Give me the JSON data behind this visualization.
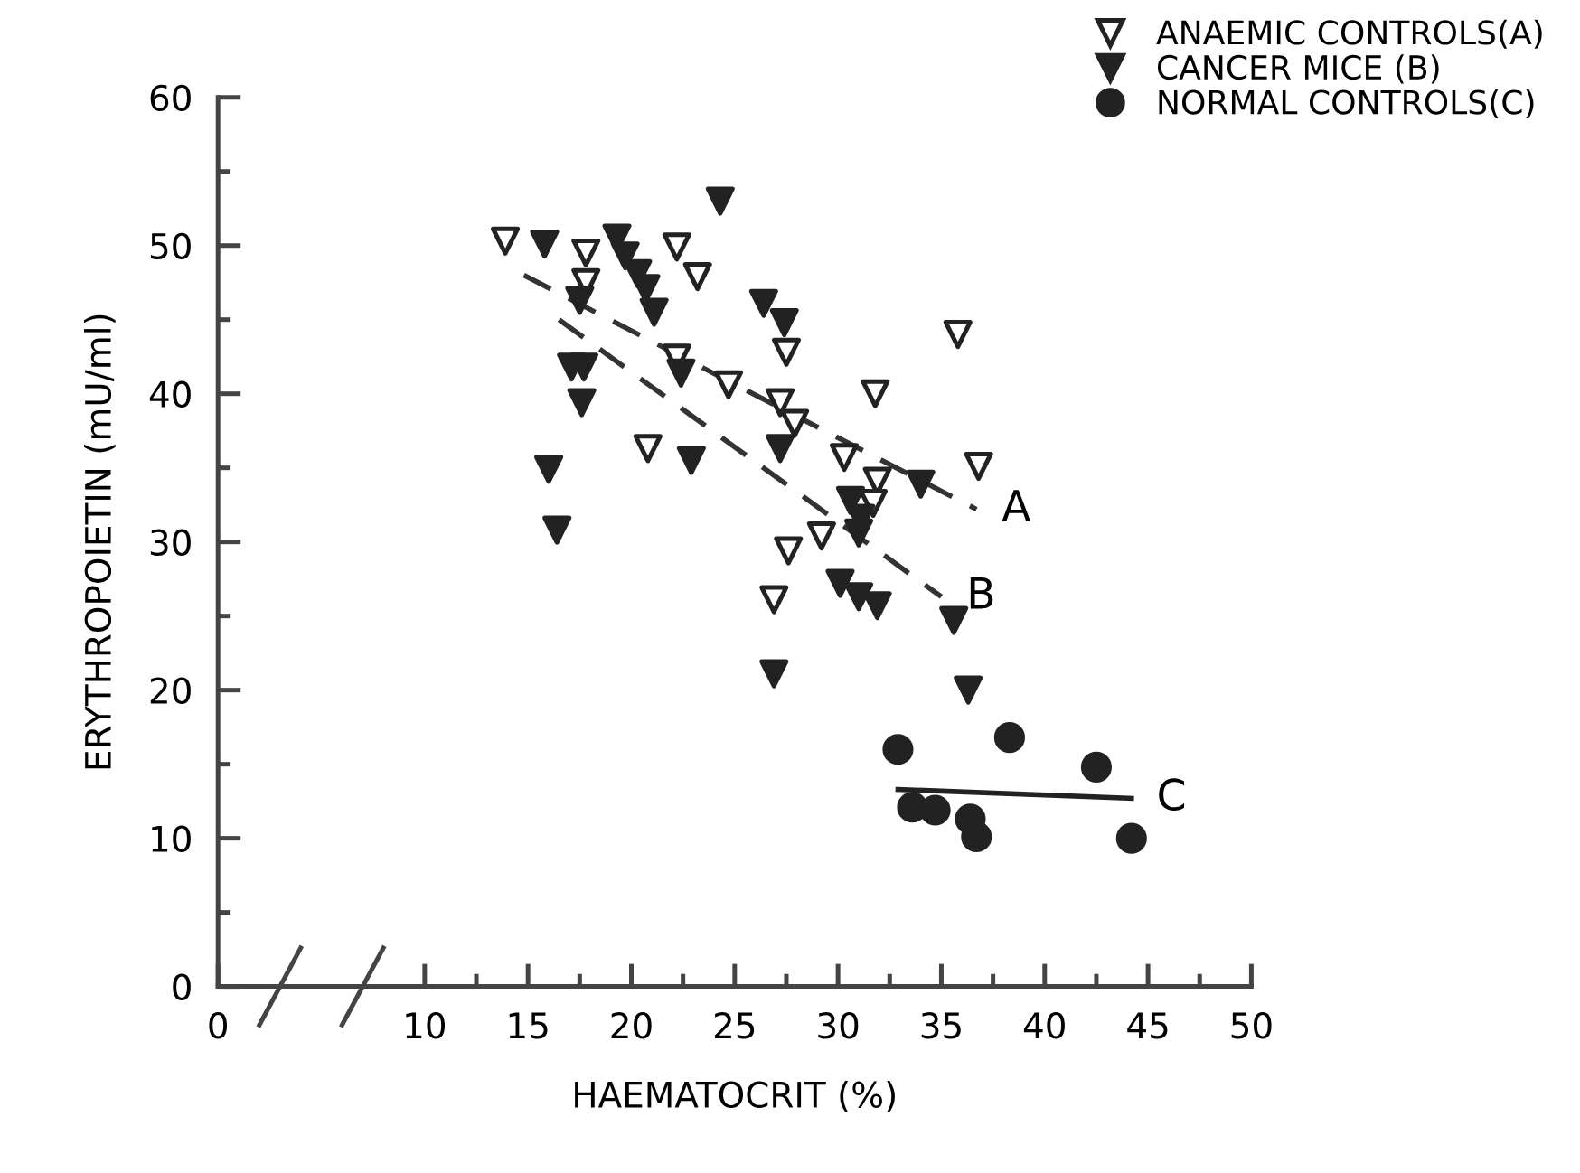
{
  "chart_data": {
    "type": "scatter",
    "xlabel": "HAEMATOCRIT (%)",
    "ylabel": "ERYTHROPOIETIN (mU/ml)",
    "xlim": [
      0,
      50
    ],
    "ylim": [
      0,
      60
    ],
    "xticks": [
      0,
      10,
      {
        "value": 12.5,
        "label": null
      },
      15,
      {
        "value": 17.5,
        "label": null
      },
      20,
      {
        "value": 22.5,
        "label": null
      },
      25,
      {
        "value": 27.5,
        "label": null
      },
      30,
      {
        "value": 32.5,
        "label": null
      },
      35,
      {
        "value": 37.5,
        "label": null
      },
      40,
      {
        "value": 42.5,
        "label": null
      },
      45,
      {
        "value": 47.5,
        "label": null
      },
      50
    ],
    "yticks": [
      0,
      {
        "value": 5,
        "label": null
      },
      10,
      {
        "value": 15,
        "label": null
      },
      20,
      {
        "value": 25,
        "label": null
      },
      30,
      {
        "value": 35,
        "label": null
      },
      40,
      {
        "value": 45,
        "label": null
      },
      50,
      {
        "value": 55,
        "label": null
      },
      60
    ],
    "grid": false,
    "legend": "top right",
    "series": [
      {
        "name": "ANAEMIC CONTROLS(A)",
        "color": "#222222",
        "marker": "triangle_open",
        "x": [
          13.9,
          17.8,
          17.8,
          22.2,
          23.2,
          27.5,
          22.2,
          24.7,
          27.2,
          27.9,
          20.8,
          30.3,
          31.8,
          36.8,
          35.8,
          31.9,
          31.7,
          29.2,
          27.6,
          26.9
        ],
        "values": [
          50.3,
          49.5,
          47.5,
          49.9,
          47.9,
          42.8,
          42.4,
          40.6,
          39.4,
          38.0,
          36.3,
          35.7,
          40.0,
          35.1,
          44.0,
          34.1,
          32.6,
          30.4,
          29.4,
          26.1
        ]
      },
      {
        "name": "CANCER MICE (B)",
        "color": "#222222",
        "marker": "triangle",
        "x": [
          24.3,
          15.8,
          19.3,
          19.7,
          20.3,
          20.7,
          21.1,
          17.5,
          26.4,
          27.4,
          17.1,
          17.7,
          17.6,
          22.4,
          22.9,
          16.0,
          16.4,
          27.2,
          34.0,
          30.6,
          31.1,
          31.0,
          30.1,
          31.0,
          31.9,
          35.6,
          26.9,
          36.3
        ],
        "values": [
          53.0,
          50.1,
          50.5,
          49.3,
          48.1,
          47.1,
          45.5,
          46.3,
          46.1,
          44.8,
          41.8,
          41.8,
          39.4,
          41.4,
          35.5,
          34.9,
          30.8,
          36.3,
          33.9,
          32.8,
          31.6,
          30.6,
          27.2,
          26.3,
          25.7,
          24.7,
          21.1,
          20.0
        ]
      },
      {
        "name": "NORMAL CONTROLS(C)",
        "color": "#222222",
        "marker": "circle",
        "x": [
          32.9,
          38.3,
          33.6,
          34.7,
          36.4,
          36.7,
          44.2,
          42.5
        ],
        "values": [
          16.0,
          16.8,
          12.1,
          11.9,
          11.3,
          10.1,
          10.0,
          14.8
        ]
      },
      {
        "type": "line",
        "color": "#333333",
        "line_style": "dashed",
        "x": [
          14.8,
          36.7
        ],
        "values": [
          48.0,
          32.2
        ]
      },
      {
        "type": "line",
        "color": "#333333",
        "line_style": "dashed",
        "x": [
          16.5,
          35.0
        ],
        "values": [
          45.0,
          26.3
        ]
      },
      {
        "type": "line",
        "color": "#222222",
        "line_style": "solid",
        "x": [
          32.9,
          44.2
        ],
        "values": [
          13.3,
          12.7
        ]
      }
    ],
    "annotations": [
      "A",
      "B",
      "C"
    ]
  }
}
